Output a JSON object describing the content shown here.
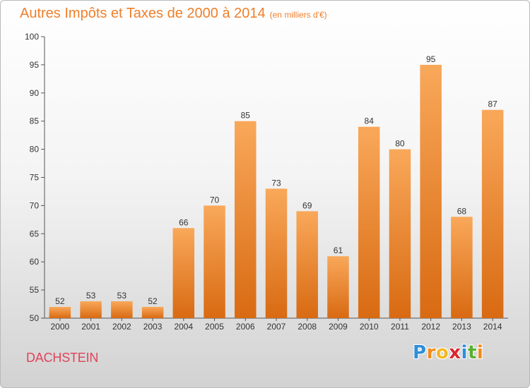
{
  "title": "Autres Impôts et Taxes de 2000 à 2014",
  "subtitle": "(en milliers d'€)",
  "location": "DACHSTEIN",
  "logo": {
    "letters": [
      "P",
      "r",
      "o",
      "x",
      "i",
      "t",
      "i"
    ],
    "colors": [
      "#2f8fd8",
      "#f18a1c",
      "#f2b825",
      "#d9262e",
      "#2f8fd8",
      "#5ab031",
      "#f18a1c"
    ]
  },
  "colors": {
    "bar": "#f18a2c",
    "title": "#ef7f2a",
    "location": "#e0445a"
  },
  "chart_data": {
    "type": "bar",
    "categories": [
      "2000",
      "2001",
      "2002",
      "2003",
      "2004",
      "2005",
      "2006",
      "2007",
      "2008",
      "2009",
      "2010",
      "2011",
      "2012",
      "2013",
      "2014"
    ],
    "values": [
      52,
      53,
      53,
      52,
      66,
      70,
      85,
      73,
      69,
      61,
      84,
      80,
      95,
      68,
      87
    ],
    "title": "Autres Impôts et Taxes de 2000 à 2014",
    "xlabel": "",
    "ylabel": "",
    "ylim": [
      50,
      100
    ],
    "yticks": [
      50,
      55,
      60,
      65,
      70,
      75,
      80,
      85,
      90,
      95,
      100
    ],
    "grid": false,
    "data_labels": true
  }
}
